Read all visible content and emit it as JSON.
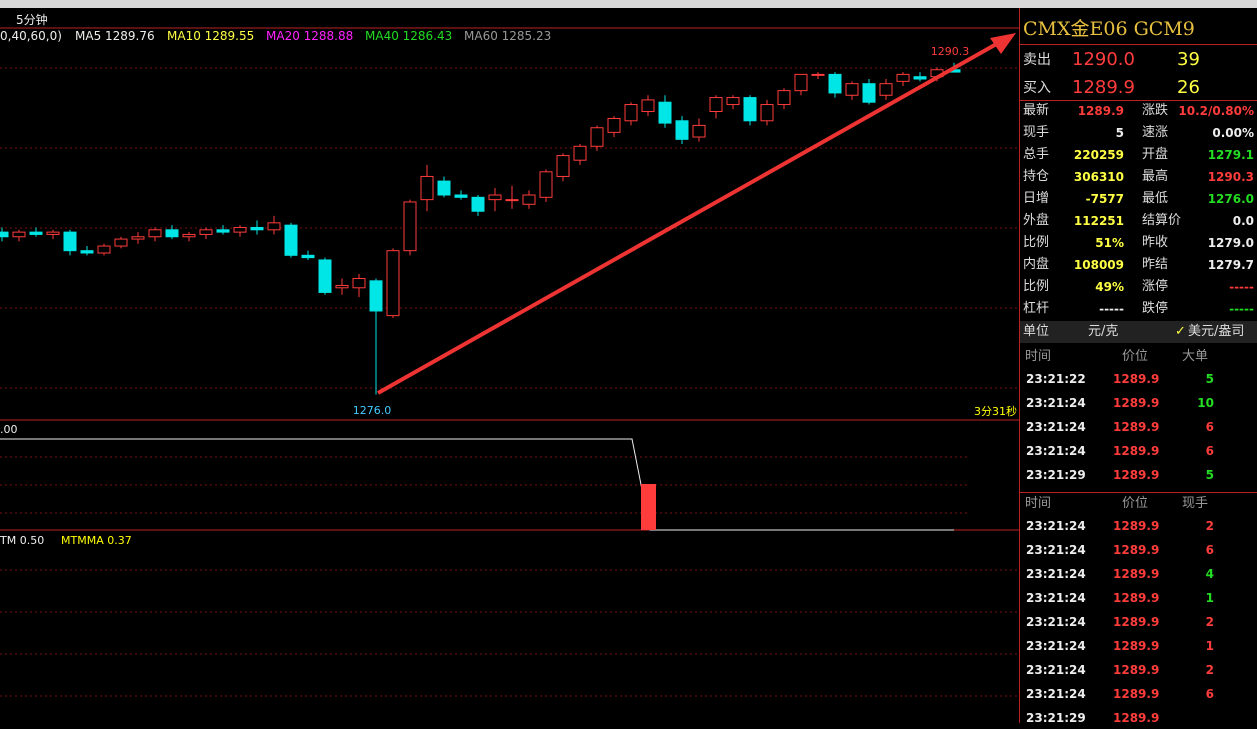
{
  "toolbar": {
    "period": "5分钟",
    "ma_params": "0,40,60,0)",
    "ma_legend": [
      "MA5 1289.76",
      "MA10 1289.55",
      "MA20 1288.88",
      "MA40 1286.43",
      "MA60 1285.23"
    ]
  },
  "chart": {
    "type": "candlestick",
    "ylim": [
      1274.9,
      1291.8
    ],
    "high_label": "1290.3",
    "low_label": "1276.0",
    "countdown": "3分31秒",
    "candles": [
      [
        1283.0,
        1283.2,
        1282.6,
        1282.8
      ],
      [
        1282.8,
        1283.1,
        1282.6,
        1283.0
      ],
      [
        1283.0,
        1283.2,
        1282.8,
        1282.9
      ],
      [
        1282.9,
        1283.1,
        1282.7,
        1283.0
      ],
      [
        1283.0,
        1283.1,
        1282.0,
        1282.2
      ],
      [
        1282.2,
        1282.4,
        1282.0,
        1282.1
      ],
      [
        1282.1,
        1282.5,
        1282.0,
        1282.4
      ],
      [
        1282.4,
        1282.8,
        1282.3,
        1282.7
      ],
      [
        1282.7,
        1283.0,
        1282.5,
        1282.8
      ],
      [
        1282.8,
        1283.2,
        1282.6,
        1283.1
      ],
      [
        1283.1,
        1283.3,
        1282.7,
        1282.8
      ],
      [
        1282.8,
        1283.0,
        1282.6,
        1282.9
      ],
      [
        1282.9,
        1283.2,
        1282.7,
        1283.1
      ],
      [
        1283.1,
        1283.3,
        1282.9,
        1283.0
      ],
      [
        1283.0,
        1283.3,
        1282.8,
        1283.2
      ],
      [
        1283.2,
        1283.5,
        1282.9,
        1283.1
      ],
      [
        1283.1,
        1283.7,
        1282.9,
        1283.4
      ],
      [
        1283.3,
        1283.4,
        1281.9,
        1282.0
      ],
      [
        1282.0,
        1282.2,
        1281.8,
        1281.9
      ],
      [
        1281.8,
        1281.9,
        1280.3,
        1280.4
      ],
      [
        1280.6,
        1281.0,
        1280.3,
        1280.7
      ],
      [
        1280.6,
        1281.2,
        1280.2,
        1281.0
      ],
      [
        1280.9,
        1281.0,
        1276.0,
        1279.6
      ],
      [
        1279.4,
        1282.3,
        1279.3,
        1282.2
      ],
      [
        1282.2,
        1284.4,
        1282.0,
        1284.3
      ],
      [
        1284.4,
        1285.9,
        1283.9,
        1285.4
      ],
      [
        1285.2,
        1285.4,
        1284.5,
        1284.6
      ],
      [
        1284.6,
        1284.8,
        1284.4,
        1284.5
      ],
      [
        1284.5,
        1284.6,
        1283.7,
        1283.9
      ],
      [
        1284.4,
        1284.9,
        1283.9,
        1284.6
      ],
      [
        1284.4,
        1285.0,
        1284.0,
        1284.4
      ],
      [
        1284.2,
        1284.8,
        1284.0,
        1284.6
      ],
      [
        1284.5,
        1285.7,
        1284.3,
        1285.6
      ],
      [
        1285.4,
        1286.4,
        1285.2,
        1286.3
      ],
      [
        1286.1,
        1286.8,
        1285.9,
        1286.7
      ],
      [
        1286.7,
        1287.6,
        1286.5,
        1287.5
      ],
      [
        1287.3,
        1288.0,
        1287.1,
        1287.9
      ],
      [
        1287.8,
        1288.6,
        1287.6,
        1288.5
      ],
      [
        1288.2,
        1288.9,
        1288.0,
        1288.7
      ],
      [
        1288.6,
        1288.9,
        1287.5,
        1287.7
      ],
      [
        1287.8,
        1288.0,
        1286.8,
        1287.0
      ],
      [
        1287.1,
        1287.9,
        1286.9,
        1287.6
      ],
      [
        1288.2,
        1288.9,
        1287.9,
        1288.8
      ],
      [
        1288.5,
        1288.9,
        1288.3,
        1288.8
      ],
      [
        1288.8,
        1288.9,
        1287.6,
        1287.8
      ],
      [
        1287.8,
        1288.7,
        1287.6,
        1288.5
      ],
      [
        1288.5,
        1289.2,
        1288.3,
        1289.1
      ],
      [
        1289.1,
        1289.8,
        1288.9,
        1289.8
      ],
      [
        1289.8,
        1289.9,
        1289.6,
        1289.8
      ],
      [
        1289.8,
        1289.9,
        1288.8,
        1289.0
      ],
      [
        1288.9,
        1289.5,
        1288.7,
        1289.4
      ],
      [
        1289.4,
        1289.6,
        1288.5,
        1288.6
      ],
      [
        1288.9,
        1289.6,
        1288.7,
        1289.4
      ],
      [
        1289.5,
        1289.9,
        1289.3,
        1289.8
      ],
      [
        1289.7,
        1289.9,
        1289.5,
        1289.6
      ],
      [
        1289.7,
        1290.1,
        1289.5,
        1290.0
      ],
      [
        1290.0,
        1290.3,
        1289.9,
        1289.9
      ]
    ]
  },
  "panel2": {
    "label": ".00"
  },
  "panel3": {
    "legend": [
      "TM 0.50",
      "MTMMA 0.37"
    ]
  },
  "quote": {
    "title": "CMX金E06  GCM9",
    "ask": {
      "label": "卖出",
      "price": "1290.0",
      "size": "39"
    },
    "bid": {
      "label": "买入",
      "price": "1289.9",
      "size": "26"
    },
    "stats": [
      [
        "最新",
        "1289.9",
        "涨跌",
        "10.2/0.80%"
      ],
      [
        "现手",
        "5",
        "速涨",
        "0.00%"
      ],
      [
        "总手",
        "220259",
        "开盘",
        "1279.1"
      ],
      [
        "持仓",
        "306310",
        "最高",
        "1290.3"
      ],
      [
        "日增",
        "-7577",
        "最低",
        "1276.0"
      ],
      [
        "外盘",
        "112251",
        "结算价",
        "0.0"
      ],
      [
        "比例",
        "51%",
        "昨收",
        "1279.0"
      ],
      [
        "内盘",
        "108009",
        "昨结",
        "1279.7"
      ],
      [
        "比例",
        "49%",
        "涨停",
        "-----"
      ],
      [
        "杠杆",
        "-----",
        "跌停",
        "-----"
      ]
    ],
    "unit": {
      "label": "单位",
      "option_a": "元/克",
      "option_b": "美元/盎司"
    },
    "big_trades": {
      "header": [
        "时间",
        "价位",
        "大单"
      ],
      "rows": [
        [
          "23:21:22",
          "1289.9",
          "5"
        ],
        [
          "23:21:24",
          "1289.9",
          "10"
        ],
        [
          "23:21:24",
          "1289.9",
          "6"
        ],
        [
          "23:21:24",
          "1289.9",
          "6"
        ],
        [
          "23:21:29",
          "1289.9",
          "5"
        ]
      ]
    },
    "ticks": {
      "header": [
        "时间",
        "价位",
        "现手"
      ],
      "rows": [
        [
          "23:21:24",
          "1289.9",
          "2"
        ],
        [
          "23:21:24",
          "1289.9",
          "6"
        ],
        [
          "23:21:24",
          "1289.9",
          "4"
        ],
        [
          "23:21:24",
          "1289.9",
          "1"
        ],
        [
          "23:21:24",
          "1289.9",
          "2"
        ],
        [
          "23:21:24",
          "1289.9",
          "1"
        ],
        [
          "23:21:24",
          "1289.9",
          "2"
        ],
        [
          "23:21:24",
          "1289.9",
          "6"
        ],
        [
          "23:21:29",
          "1289.9",
          ""
        ]
      ]
    }
  }
}
